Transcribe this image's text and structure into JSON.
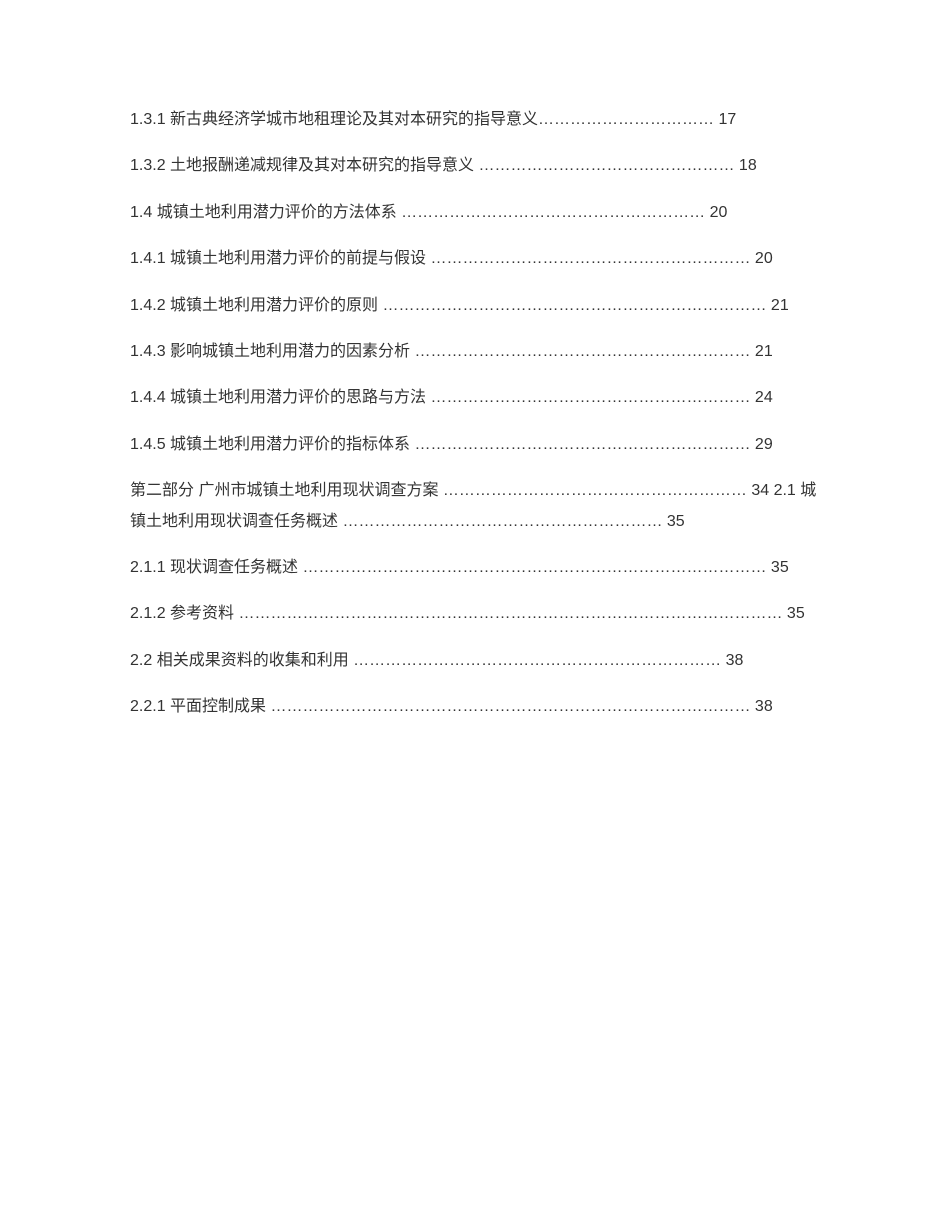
{
  "entries": [
    {
      "text": "1.3.1 新古典经济学城市地租理论及其对本研究的指导意义…………………………… 17"
    },
    {
      "text": "1.3.2 土地报酬递减规律及其对本研究的指导意义 ………………………………………… 18"
    },
    {
      "text": "1.4 城镇土地利用潜力评价的方法体系 ………………………………………………… 20"
    },
    {
      "text": "1.4.1 城镇土地利用潜力评价的前提与假设 …………………………………………………… 20"
    },
    {
      "text": "1.4.2 城镇土地利用潜力评价的原则 ……………………………………………………………… 21"
    },
    {
      "text": "1.4.3 影响城镇土地利用潜力的因素分析 ……………………………………………………… 21"
    },
    {
      "text": "1.4.4 城镇土地利用潜力评价的思路与方法 …………………………………………………… 24"
    },
    {
      "text": "1.4.5 城镇土地利用潜力评价的指标体系 ……………………………………………………… 29"
    },
    {
      "text": "第二部分 广州市城镇土地利用现状调查方案 ………………………………………………… 34 2.1 城镇土地利用现状调查任务概述 …………………………………………………… 35"
    },
    {
      "text": "2.1.1 现状调查任务概述 …………………………………………………………………………… 35"
    },
    {
      "text": "2.1.2 参考资料 ………………………………………………………………………………………… 35"
    },
    {
      "text": "2.2 相关成果资料的收集和利用 …………………………………………………………… 38"
    },
    {
      "text": "2.2.1 平面控制成果 ……………………………………………………………………………… 38"
    }
  ]
}
